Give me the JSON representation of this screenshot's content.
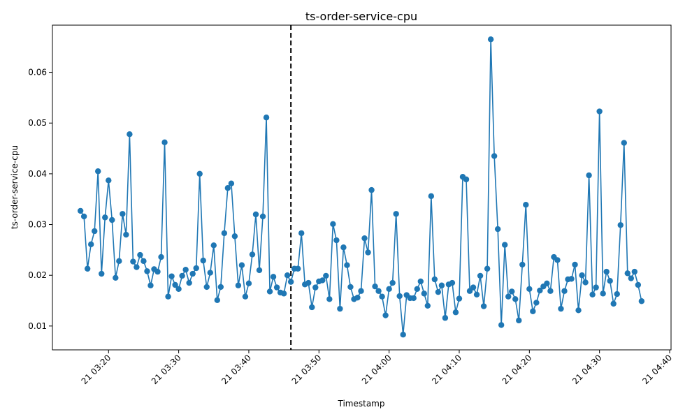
{
  "chart_data": {
    "type": "line",
    "title": "ts-order-service-cpu",
    "xlabel": "Timestamp",
    "ylabel": "ts-order-service-cpu",
    "x_start": "21 03:16:00",
    "x_step_seconds": 30,
    "x_ticks": [
      {
        "label": "21 03:20",
        "t": "03:20"
      },
      {
        "label": "21 03:30",
        "t": "03:30"
      },
      {
        "label": "21 03:40",
        "t": "03:40"
      },
      {
        "label": "21 03:50",
        "t": "03:50"
      },
      {
        "label": "21 04:00",
        "t": "04:00"
      },
      {
        "label": "21 04:10",
        "t": "04:10"
      },
      {
        "label": "21 04:20",
        "t": "04:20"
      },
      {
        "label": "21 04:30",
        "t": "04:30"
      },
      {
        "label": "21 04:40",
        "t": "04:40"
      }
    ],
    "xlim": [
      "03:12:00",
      "04:40:12"
    ],
    "y_ticks": [
      {
        "label": "0.01",
        "v": 0.01
      },
      {
        "label": "0.02",
        "v": 0.02
      },
      {
        "label": "0.03",
        "v": 0.03
      },
      {
        "label": "0.04",
        "v": 0.04
      },
      {
        "label": "0.05",
        "v": 0.05
      },
      {
        "label": "0.06",
        "v": 0.06
      }
    ],
    "ylim": [
      0.0053,
      0.0693
    ],
    "vline": {
      "x": "03:46:00",
      "style": "dashed",
      "color": "#000000"
    },
    "grid": false,
    "series": [
      {
        "color": "#1f77b4",
        "values": [
          0.0327,
          0.0316,
          0.0213,
          0.0261,
          0.0287,
          0.0405,
          0.0203,
          0.0314,
          0.0387,
          0.0309,
          0.0195,
          0.0228,
          0.0321,
          0.028,
          0.0478,
          0.0227,
          0.0216,
          0.024,
          0.0228,
          0.0208,
          0.018,
          0.0212,
          0.0207,
          0.0236,
          0.0462,
          0.0158,
          0.0198,
          0.0181,
          0.0173,
          0.0199,
          0.0211,
          0.0185,
          0.0203,
          0.0214,
          0.04,
          0.0229,
          0.0177,
          0.0205,
          0.0259,
          0.0151,
          0.0177,
          0.0283,
          0.0372,
          0.0381,
          0.0277,
          0.018,
          0.022,
          0.0158,
          0.0184,
          0.0241,
          0.032,
          0.021,
          0.0316,
          0.0511,
          0.0168,
          0.0197,
          0.0176,
          0.0166,
          0.0164,
          0.02,
          0.0187,
          0.0213,
          0.0213,
          0.0283,
          0.0182,
          0.0185,
          0.0137,
          0.0176,
          0.0188,
          0.019,
          0.0199,
          0.0153,
          0.0301,
          0.0269,
          0.0134,
          0.0255,
          0.022,
          0.0177,
          0.0153,
          0.0156,
          0.0169,
          0.0273,
          0.0245,
          0.0368,
          0.0178,
          0.0169,
          0.0158,
          0.0121,
          0.0173,
          0.0185,
          0.0321,
          0.0159,
          0.0083,
          0.0161,
          0.0155,
          0.0155,
          0.0173,
          0.0188,
          0.0164,
          0.014,
          0.0356,
          0.0192,
          0.0167,
          0.018,
          0.0116,
          0.0182,
          0.0185,
          0.0127,
          0.0154,
          0.0394,
          0.0389,
          0.0169,
          0.0176,
          0.0162,
          0.0199,
          0.0139,
          0.0213,
          0.0665,
          0.0435,
          0.0291,
          0.0102,
          0.026,
          0.0158,
          0.0168,
          0.0153,
          0.0111,
          0.0221,
          0.0339,
          0.0173,
          0.0129,
          0.0146,
          0.017,
          0.0178,
          0.0184,
          0.0169,
          0.0236,
          0.023,
          0.0134,
          0.0169,
          0.0192,
          0.0193,
          0.0221,
          0.0131,
          0.02,
          0.0186,
          0.0397,
          0.0162,
          0.0176,
          0.0523,
          0.0164,
          0.0207,
          0.0189,
          0.0144,
          0.0163,
          0.0299,
          0.0461,
          0.0204,
          0.0194,
          0.0207,
          0.0181,
          0.0149
        ]
      }
    ]
  }
}
